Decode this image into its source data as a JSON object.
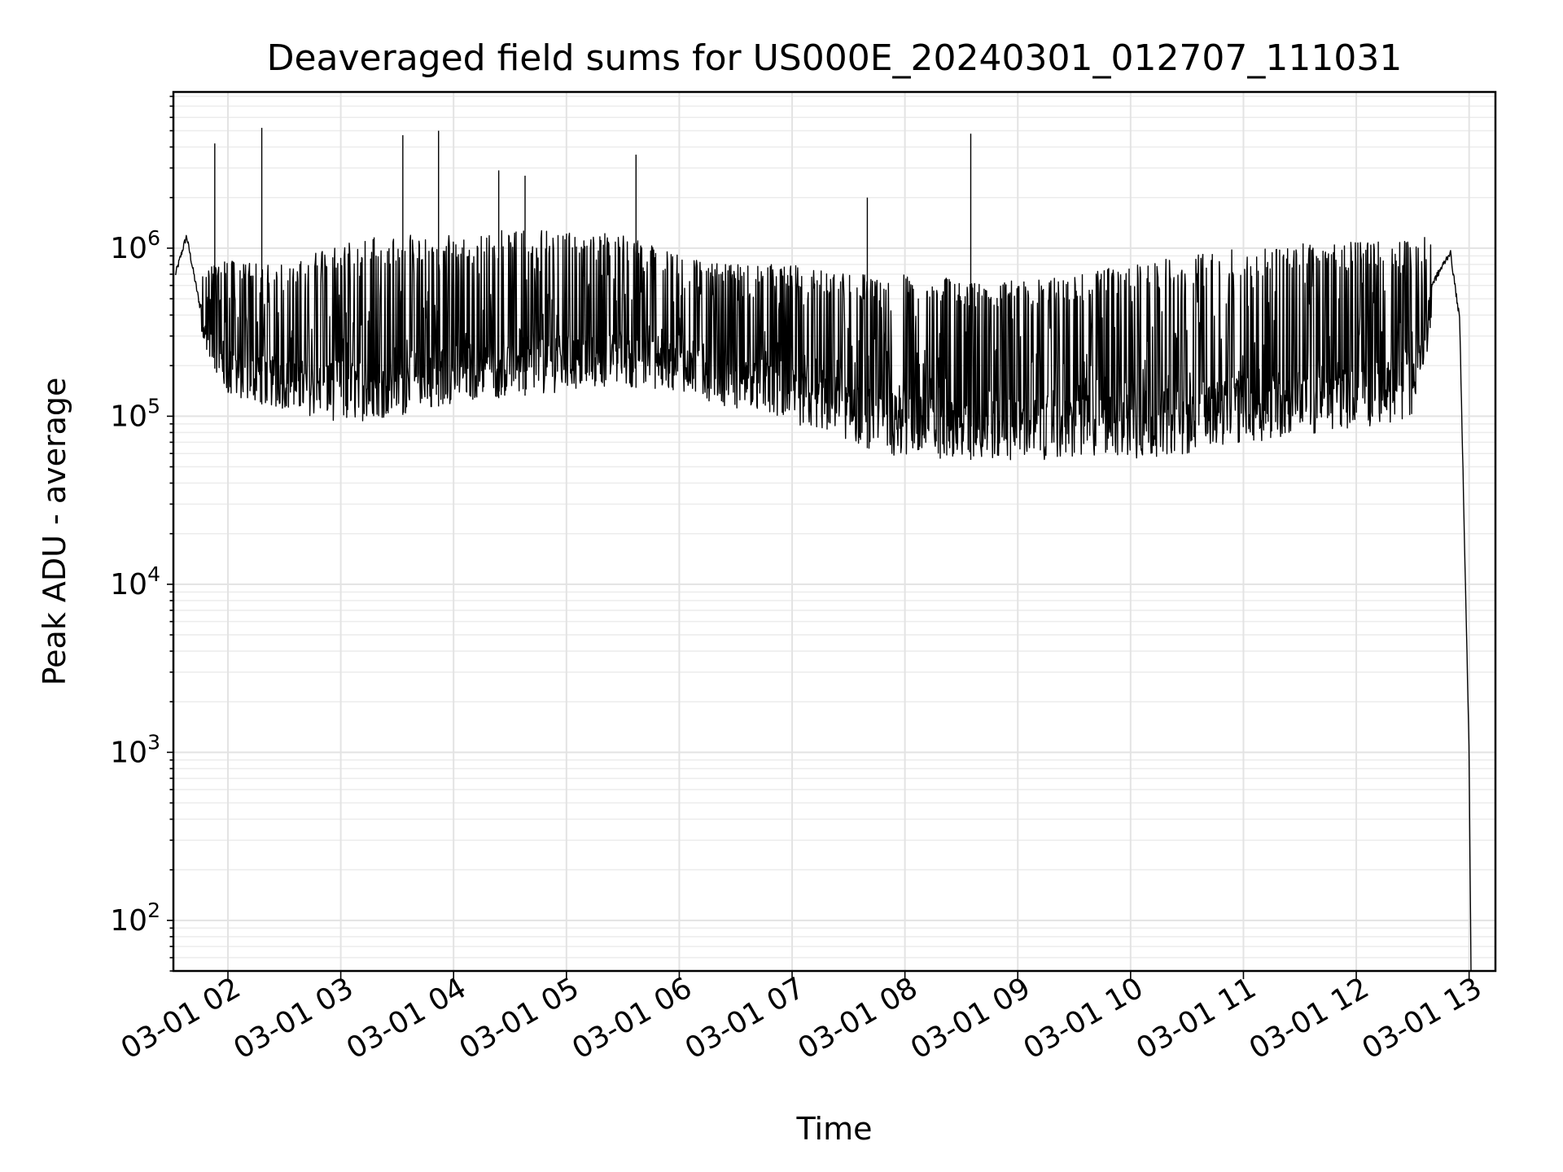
{
  "chart_data": {
    "type": "line",
    "title": "Deaveraged field sums for US000E_20240301_012707_111031",
    "xlabel": "Time",
    "ylabel": "Peak ADU - average",
    "x_scale": "time",
    "y_scale": "log",
    "xlim": [
      "2024-03-01 01:31",
      "2024-03-01 13:14"
    ],
    "ylim": [
      50,
      8500000
    ],
    "grid": "on (major and minor)",
    "legend": "none",
    "x_ticks": [
      "03-01 02",
      "03-01 03",
      "03-01 04",
      "03-01 05",
      "03-01 06",
      "03-01 07",
      "03-01 08",
      "03-01 09",
      "03-01 10",
      "03-01 11",
      "03-01 12",
      "03-01 13"
    ],
    "y_ticks": [
      {
        "value": 100,
        "base": "10",
        "exp": "2"
      },
      {
        "value": 1000,
        "base": "10",
        "exp": "3"
      },
      {
        "value": 10000,
        "base": "10",
        "exp": "4"
      },
      {
        "value": 100000,
        "base": "10",
        "exp": "5"
      },
      {
        "value": 1000000,
        "base": "10",
        "exp": "6"
      }
    ],
    "line_color": "#000000",
    "series": [
      {
        "x": [
          "2024-03-01 01:32",
          "2024-03-01 01:38",
          "2024-03-01 01:45",
          "2024-03-01 02:00",
          "2024-03-01 02:30",
          "2024-03-01 03:00",
          "2024-03-01 03:30",
          "2024-03-01 04:00",
          "2024-03-01 04:30",
          "2024-03-01 05:00",
          "2024-03-01 05:30",
          "2024-03-01 06:00",
          "2024-03-01 06:30",
          "2024-03-01 07:00",
          "2024-03-01 07:30",
          "2024-03-01 08:00",
          "2024-03-01 08:30",
          "2024-03-01 09:00",
          "2024-03-01 09:30",
          "2024-03-01 10:00",
          "2024-03-01 10:30",
          "2024-03-01 11:00",
          "2024-03-01 11:30",
          "2024-03-01 12:00",
          "2024-03-01 12:30",
          "2024-03-01 12:40",
          "2024-03-01 12:50",
          "2024-03-01 12:55",
          "2024-03-01 13:00",
          "2024-03-01 13:01"
        ],
        "y_low": [
          600000,
          1000000,
          300000,
          130000,
          110000,
          90000,
          100000,
          120000,
          130000,
          140000,
          150000,
          140000,
          110000,
          90000,
          70000,
          55000,
          55000,
          55000,
          55000,
          55000,
          60000,
          70000,
          75000,
          85000,
          90000,
          300000,
          900000,
          200000,
          1000,
          50
        ],
        "y_high": [
          800000,
          1400000,
          700000,
          900000,
          800000,
          1100000,
          1200000,
          1200000,
          1300000,
          1300000,
          1200000,
          900000,
          800000,
          800000,
          700000,
          700000,
          650000,
          650000,
          700000,
          800000,
          900000,
          1000000,
          1100000,
          1100000,
          1100000,
          1200000,
          1000000,
          700000,
          1000,
          50
        ],
        "spikes": [
          {
            "x": "2024-03-01 01:53",
            "y": 4200000
          },
          {
            "x": "2024-03-01 02:18",
            "y": 5200000
          },
          {
            "x": "2024-03-01 03:33",
            "y": 4700000
          },
          {
            "x": "2024-03-01 03:52",
            "y": 5000000
          },
          {
            "x": "2024-03-01 04:24",
            "y": 2900000
          },
          {
            "x": "2024-03-01 04:38",
            "y": 2700000
          },
          {
            "x": "2024-03-01 05:37",
            "y": 3600000
          },
          {
            "x": "2024-03-01 07:40",
            "y": 2000000
          },
          {
            "x": "2024-03-01 08:35",
            "y": 4800000
          }
        ]
      }
    ]
  }
}
